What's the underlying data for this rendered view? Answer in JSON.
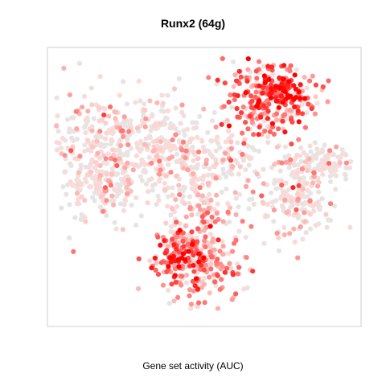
{
  "chart_data": {
    "type": "scatter",
    "title": "Runx2 (64g)",
    "xlabel": "Gene set activity (AUC)",
    "ylabel": "",
    "xlim": [
      0,
      100
    ],
    "ylim": [
      0,
      100
    ],
    "grid": false,
    "legend": "none",
    "colors": {
      "low": "#e5e5e5",
      "mid": "#fcd9d6",
      "high": "#ff0000",
      "frame": "#cccccc"
    },
    "clusters": [
      {
        "name": "top-right",
        "cx": 71,
        "cy": 83,
        "sx": 7.5,
        "sy": 8.5,
        "n": 260,
        "act": 0.62
      },
      {
        "name": "top-right-core",
        "cx": 75,
        "cy": 86,
        "sx": 3.5,
        "sy": 3.5,
        "n": 70,
        "act": 0.9
      },
      {
        "name": "upper-left",
        "cx": 22,
        "cy": 68,
        "sx": 13,
        "sy": 10,
        "n": 330,
        "act": 0.22
      },
      {
        "name": "left-band",
        "cx": 16,
        "cy": 50,
        "sx": 8,
        "sy": 7,
        "n": 150,
        "act": 0.2
      },
      {
        "name": "center",
        "cx": 47,
        "cy": 58,
        "sx": 12,
        "sy": 10,
        "n": 300,
        "act": 0.2
      },
      {
        "name": "right-arm",
        "cx": 88,
        "cy": 59,
        "sx": 6,
        "sy": 3.5,
        "n": 110,
        "act": 0.15
      },
      {
        "name": "right-lower",
        "cx": 80,
        "cy": 45,
        "sx": 6,
        "sy": 7,
        "n": 160,
        "act": 0.22
      },
      {
        "name": "bottom",
        "cx": 48,
        "cy": 26,
        "sx": 7,
        "sy": 9,
        "n": 300,
        "act": 0.48
      },
      {
        "name": "bottom-core",
        "cx": 41,
        "cy": 24,
        "sx": 4,
        "sy": 4,
        "n": 60,
        "act": 0.78
      }
    ]
  }
}
